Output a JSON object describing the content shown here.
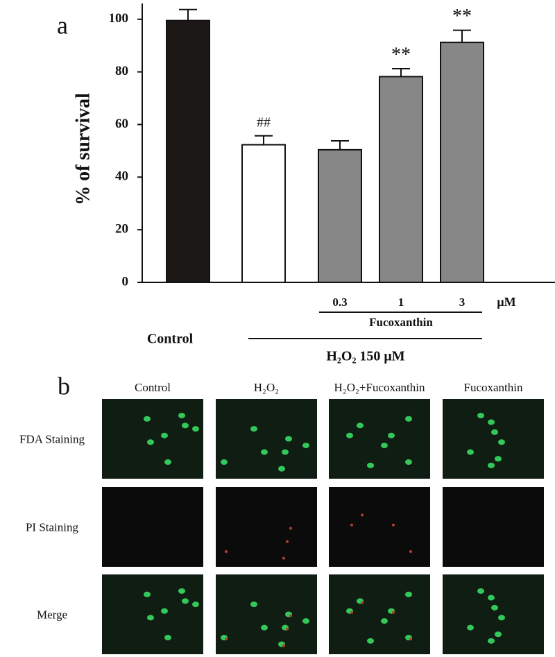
{
  "chart_data": {
    "type": "bar",
    "panel_label": "a",
    "ylabel": "% of survival",
    "categories": [
      null,
      null,
      "0.3",
      "1",
      "3"
    ],
    "values": [
      99.5,
      52.3,
      50.4,
      78.2,
      91.2
    ],
    "errors": [
      4.2,
      3.4,
      3.4,
      3.0,
      4.6
    ],
    "colors": [
      "#1c1816",
      "#ffffff",
      "#878787",
      "#878787",
      "#878787"
    ],
    "annotations": [
      null,
      "##",
      null,
      "**",
      "**"
    ],
    "unit": "μM",
    "group_labels": [
      "Fucoxanthin",
      "H₂O₂ 150 μM"
    ],
    "control_label": "Control",
    "ylim": [
      0,
      106
    ],
    "yticks": [
      0,
      20,
      40,
      60,
      80,
      100
    ]
  },
  "panel_b": {
    "panel_label": "b",
    "columns": [
      "Control",
      "H₂O₂",
      "H₂O₂+Fucoxanthin",
      "Fucoxanthin"
    ],
    "rows": [
      "FDA Staining",
      "PI Staining",
      "Merge"
    ]
  }
}
